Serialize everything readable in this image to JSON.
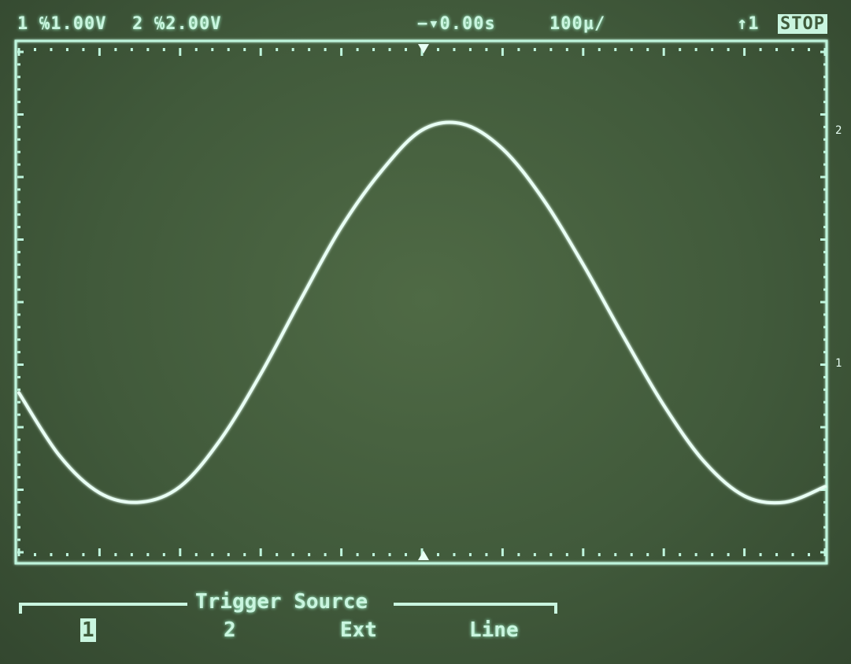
{
  "status_bar": {
    "ch1_num": "1",
    "ch1_scale": "℅1.00V",
    "ch2_num": "2",
    "ch2_scale": "℅2.00V",
    "time_offset": "−▾0.00s",
    "timebase": "100µ/",
    "trigger": "↑1",
    "run_state": "STOP"
  },
  "markers": {
    "ch2_marker": "2",
    "ch1_marker": "1"
  },
  "softkey_menu": {
    "title": "Trigger Source",
    "options": [
      "1",
      "2",
      "Ext",
      "Line"
    ],
    "selected_index": 0
  },
  "colors": {
    "trace": "#e8fff4",
    "graticule": "#bff5dd",
    "background": "#415a3b"
  },
  "chart_data": {
    "type": "line",
    "grid_divisions_x": 10,
    "grid_divisions_y": 8,
    "series": [
      {
        "x": [
          0,
          0.5,
          1.0,
          1.5,
          2.0,
          2.5,
          3.0,
          3.5,
          4.0,
          4.5,
          5.0,
          5.5,
          6.0,
          6.5,
          7.0,
          7.5,
          8.0,
          8.5,
          9.0,
          9.5,
          10.0
        ],
        "y": [
          -1.45,
          -2.45,
          -3.05,
          -3.2,
          -2.95,
          -2.2,
          -1.15,
          0.05,
          1.2,
          2.1,
          2.75,
          2.85,
          2.45,
          1.65,
          0.6,
          -0.55,
          -1.65,
          -2.55,
          -3.1,
          -3.2,
          -2.95
        ]
      },
      {
        "x": [
          0,
          10
        ],
        "y": [
          2.45,
          2.45
        ]
      }
    ]
  }
}
